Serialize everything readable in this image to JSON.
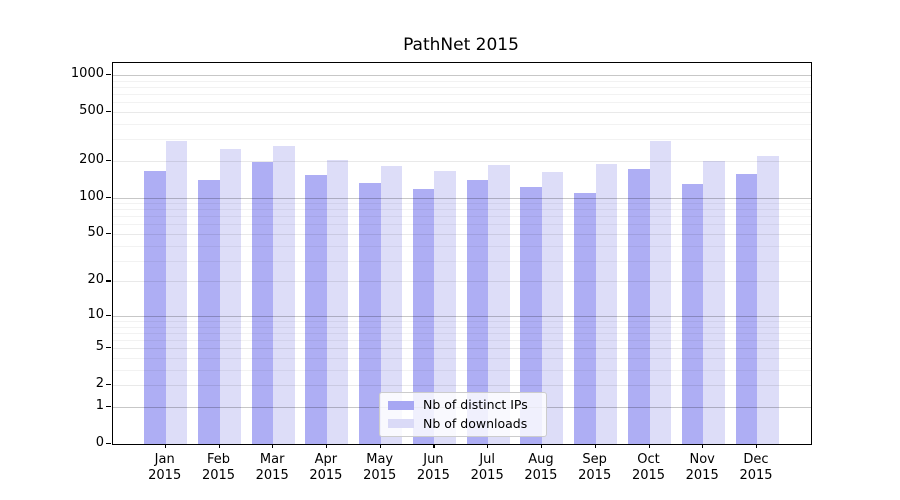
{
  "chart_data": {
    "type": "bar",
    "title": "PathNet 2015",
    "categories": [
      "Jan 2015",
      "Feb 2015",
      "Mar 2015",
      "Apr 2015",
      "May 2015",
      "Jun 2015",
      "Jul 2015",
      "Aug 2015",
      "Sep 2015",
      "Oct 2015",
      "Nov 2015",
      "Dec 2015"
    ],
    "x_tick_months": [
      "Jan",
      "Feb",
      "Mar",
      "Apr",
      "May",
      "Jun",
      "Jul",
      "Aug",
      "Sep",
      "Oct",
      "Nov",
      "Dec"
    ],
    "x_tick_year": "2015",
    "series": [
      {
        "name": "Nb of distinct IPs",
        "color": "#a7a7f3",
        "values": [
          165,
          138,
          195,
          152,
          132,
          117,
          138,
          122,
          109,
          170,
          128,
          155
        ]
      },
      {
        "name": "Nb of downloads",
        "color": "#dadaf7",
        "values": [
          290,
          249,
          265,
          203,
          181,
          165,
          184,
          162,
          187,
          289,
          199,
          220
        ]
      }
    ],
    "y_axis": {
      "ticks": [
        0,
        1,
        2,
        5,
        10,
        20,
        50,
        100,
        200,
        500,
        1000
      ],
      "scale": "log(1+x)",
      "ylim": [
        0,
        1240
      ],
      "grid": "major and minor horizontal gridlines"
    },
    "legend": {
      "position": "bottom-center-inside",
      "items": [
        "Nb of distinct IPs",
        "Nb of downloads"
      ]
    },
    "colors": {
      "distinct_ips_bar": "#a7a7f3",
      "downloads_bar": "#dadaf7",
      "major_grid": "#c7c7c7",
      "minor_grid": "#f3f3f3",
      "axis": "#000000"
    }
  }
}
